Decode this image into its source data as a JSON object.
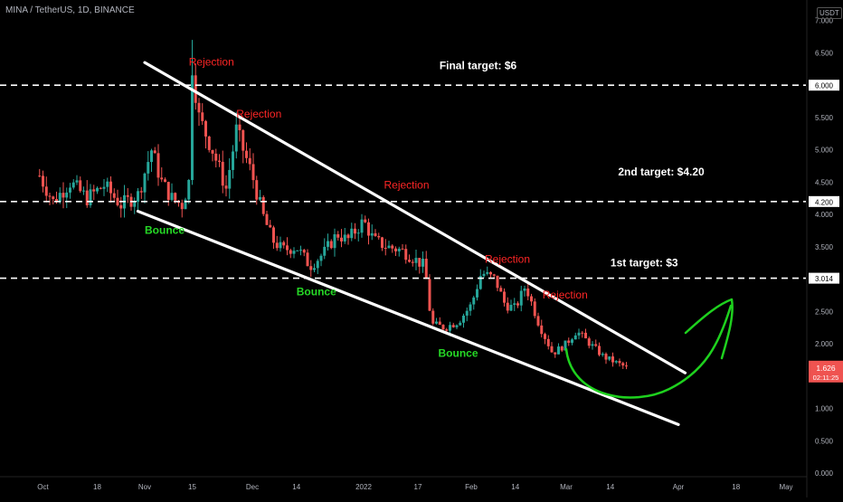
{
  "header": {
    "symbol_title": "MINA / TetherUS, 1D, BINANCE",
    "currency_badge": "USDT"
  },
  "colors": {
    "background": "#000000",
    "up_candle": "#26a69a",
    "down_candle": "#ef5350",
    "trendline": "#ffffff",
    "rejection_label": "#ff2626",
    "bounce_label": "#26d926",
    "target_label": "#ffffff",
    "projection_curve": "#1ed11e",
    "last_price_badge": "#ef5350",
    "axis_text": "#b2b5be"
  },
  "chart_data": {
    "type": "candlestick",
    "title": "MINA / TetherUS, 1D, BINANCE",
    "x_ticks": [
      "Oct",
      "18",
      "Nov",
      "15",
      "Dec",
      "14",
      "2022",
      "17",
      "Feb",
      "14",
      "Mar",
      "14",
      "Apr",
      "18",
      "May"
    ],
    "y_ticks": [
      "7.000",
      "6.500",
      "6.000",
      "5.500",
      "5.000",
      "4.500",
      "4.200",
      "4.000",
      "3.500",
      "3.014",
      "2.500",
      "2.000",
      "1.500",
      "1.000",
      "0.500",
      "0.000"
    ],
    "ylim": [
      0,
      7.3
    ],
    "grid": false,
    "series": [
      {
        "price_path": [
          [
            "Oct 1",
            4.6
          ],
          [
            "Oct 5",
            4.2
          ],
          [
            "Oct 10",
            4.5
          ],
          [
            "Oct 15",
            4.25
          ],
          [
            "Oct 20",
            4.45
          ],
          [
            "Oct 25",
            4.15
          ],
          [
            "Oct 30",
            4.3
          ],
          [
            "Nov 3",
            5.0
          ],
          [
            "Nov 6",
            4.5
          ],
          [
            "Nov 9",
            4.25
          ],
          [
            "Nov 12",
            4.15
          ],
          [
            "Nov 14",
            4.5
          ],
          [
            "Nov 15",
            6.3
          ],
          [
            "Nov 17",
            5.5
          ],
          [
            "Nov 21",
            5.0
          ],
          [
            "Nov 25",
            4.4
          ],
          [
            "Nov 28",
            5.3
          ],
          [
            "Dec 1",
            4.6
          ],
          [
            "Dec 4",
            4.0
          ],
          [
            "Dec 7",
            3.6
          ],
          [
            "Dec 10",
            3.45
          ],
          [
            "Dec 14",
            3.5
          ],
          [
            "Dec 18",
            3.2
          ],
          [
            "Dec 22",
            3.4
          ],
          [
            "Dec 26",
            3.7
          ],
          [
            "Dec 29",
            3.6
          ],
          [
            "Jan 1",
            3.9
          ],
          [
            "Jan 4",
            3.6
          ],
          [
            "Jan 8",
            3.5
          ],
          [
            "Jan 12",
            3.45
          ],
          [
            "Jan 15",
            3.35
          ],
          [
            "Jan 19",
            3.2
          ],
          [
            "Jan 21",
            2.3
          ],
          [
            "Jan 25",
            2.25
          ],
          [
            "Jan 29",
            2.35
          ],
          [
            "Feb 1",
            2.6
          ],
          [
            "Feb 4",
            3.1
          ],
          [
            "Feb 8",
            3.0
          ],
          [
            "Feb 11",
            2.6
          ],
          [
            "Feb 14",
            2.55
          ],
          [
            "Feb 17",
            2.9
          ],
          [
            "Feb 21",
            2.3
          ],
          [
            "Feb 25",
            1.85
          ],
          [
            "Mar 1",
            2.0
          ],
          [
            "Mar 4",
            2.2
          ],
          [
            "Mar 8",
            2.0
          ],
          [
            "Mar 12",
            1.8
          ],
          [
            "Mar 16",
            1.7
          ],
          [
            "Mar 19",
            1.626
          ]
        ]
      }
    ],
    "last_price": "1.626",
    "countdown": "02:11:25",
    "horizontal_levels": [
      {
        "value": 6.0,
        "label": "6.000",
        "style": "dashed"
      },
      {
        "value": 4.2,
        "label": "4.200",
        "style": "dashed"
      },
      {
        "value": 3.014,
        "label": "3.014",
        "style": "dashed"
      }
    ],
    "trendlines": [
      {
        "name": "upper",
        "from": [
          "Nov 1",
          6.35
        ],
        "to": [
          "Apr 3",
          1.55
        ]
      },
      {
        "name": "lower",
        "from": [
          "Oct 30",
          4.05
        ],
        "to": [
          "Apr 1",
          0.75
        ]
      }
    ],
    "annotations": {
      "rejections": [
        {
          "text": "Rejection",
          "x": "Nov 14",
          "y": 6.3
        },
        {
          "text": "Rejection",
          "x": "Nov 28",
          "y": 5.5
        },
        {
          "text": "Rejection",
          "x": "Jan 7",
          "y": 4.4
        },
        {
          "text": "Rejection",
          "x": "Feb 5",
          "y": 3.25
        },
        {
          "text": "Rejection",
          "x": "Feb 22",
          "y": 2.7
        }
      ],
      "bounces": [
        {
          "text": "Bounce",
          "x": "Nov 1",
          "y": 3.7
        },
        {
          "text": "Bounce",
          "x": "Dec 14",
          "y": 2.75
        },
        {
          "text": "Bounce",
          "x": "Jan 23",
          "y": 1.8
        }
      ],
      "targets": [
        {
          "text": "Final target: $6",
          "x": "Feb 3",
          "y": 6.25
        },
        {
          "text": "2nd target: $4.20",
          "x": "Mar 29",
          "y": 4.6
        },
        {
          "text": "1st target: $3",
          "x": "Mar 24",
          "y": 3.2
        }
      ]
    }
  }
}
